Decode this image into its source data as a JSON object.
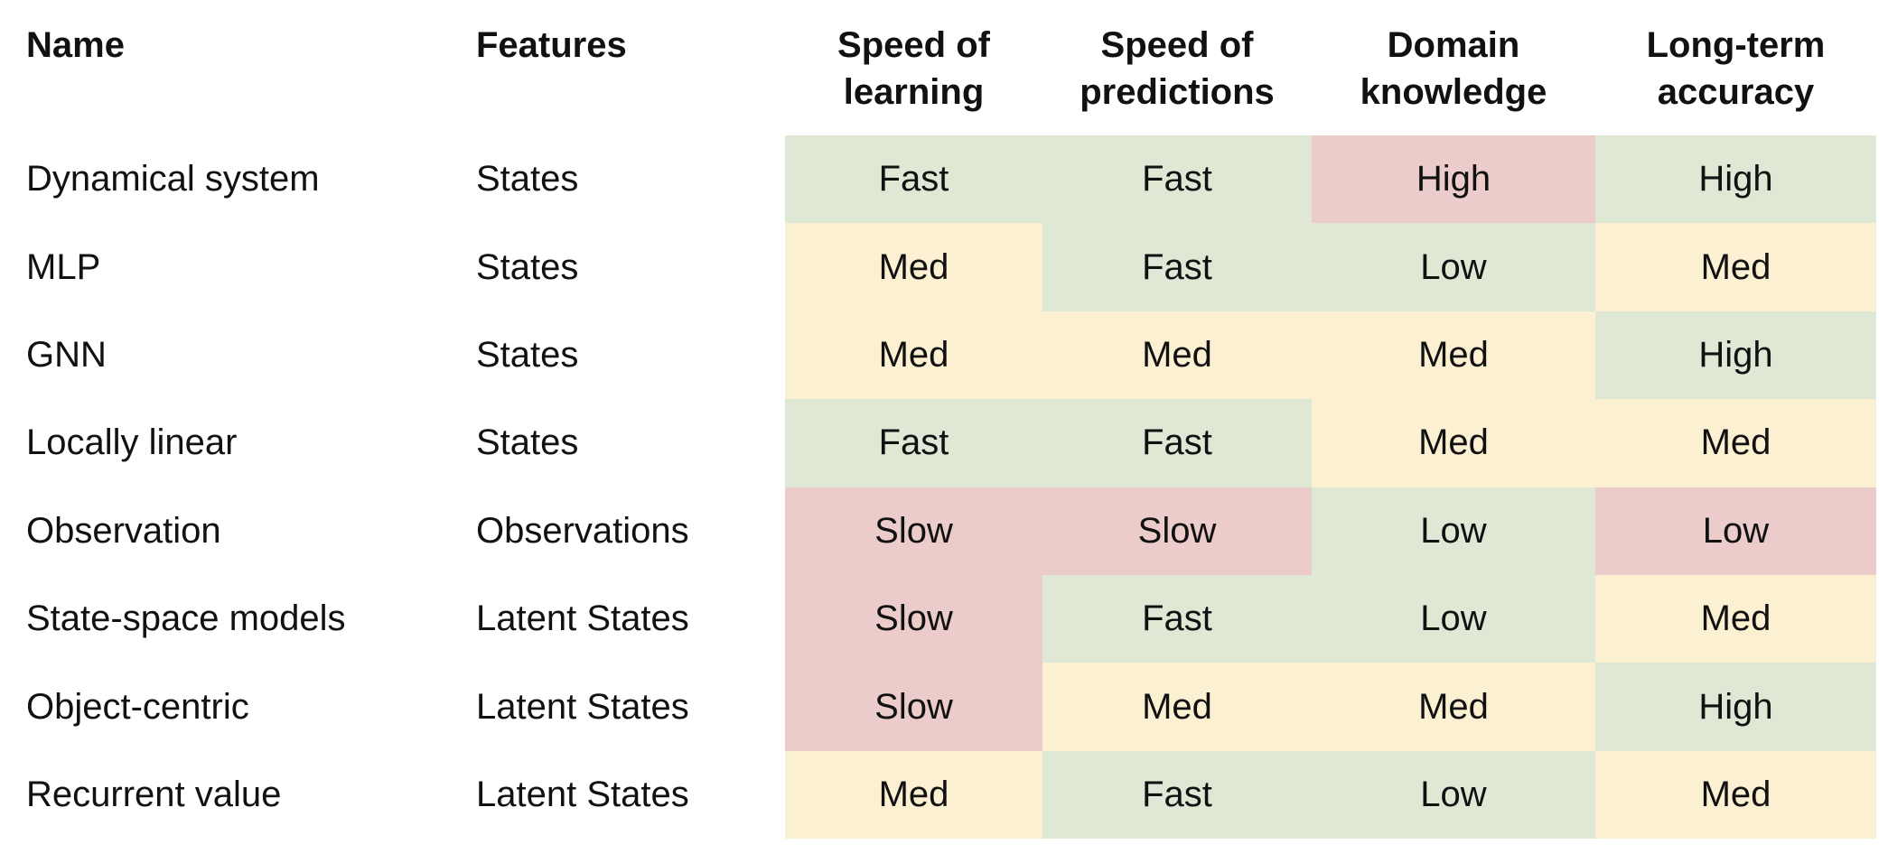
{
  "headers": {
    "name": "Name",
    "features": "Features",
    "speed_learning": "Speed of\nlearning",
    "speed_predictions": "Speed of\npredictions",
    "domain_knowledge": "Domain\nknowledge",
    "long_term_accuracy": "Long-term\naccuracy"
  },
  "colors": {
    "good": "#dfe8d5",
    "mid": "#fcf0d2",
    "bad": "#ecccca"
  },
  "rows": [
    {
      "name": "Dynamical system",
      "features": "States",
      "speed_learning": "Fast",
      "speed_predictions": "Fast",
      "domain_knowledge": "High",
      "long_term_accuracy": "High",
      "tones": [
        "good",
        "good",
        "bad",
        "good"
      ]
    },
    {
      "name": "MLP",
      "features": "States",
      "speed_learning": "Med",
      "speed_predictions": "Fast",
      "domain_knowledge": "Low",
      "long_term_accuracy": "Med",
      "tones": [
        "mid",
        "good",
        "good",
        "mid"
      ]
    },
    {
      "name": "GNN",
      "features": "States",
      "speed_learning": "Med",
      "speed_predictions": "Med",
      "domain_knowledge": "Med",
      "long_term_accuracy": "High",
      "tones": [
        "mid",
        "mid",
        "mid",
        "good"
      ]
    },
    {
      "name": "Locally linear",
      "features": "States",
      "speed_learning": "Fast",
      "speed_predictions": "Fast",
      "domain_knowledge": "Med",
      "long_term_accuracy": "Med",
      "tones": [
        "good",
        "good",
        "mid",
        "mid"
      ]
    },
    {
      "name": "Observation",
      "features": "Observations",
      "speed_learning": "Slow",
      "speed_predictions": "Slow",
      "domain_knowledge": "Low",
      "long_term_accuracy": "Low",
      "tones": [
        "bad",
        "bad",
        "good",
        "bad"
      ]
    },
    {
      "name": "State-space models",
      "features": "Latent States",
      "speed_learning": "Slow",
      "speed_predictions": "Fast",
      "domain_knowledge": "Low",
      "long_term_accuracy": "Med",
      "tones": [
        "bad",
        "good",
        "good",
        "mid"
      ]
    },
    {
      "name": "Object-centric",
      "features": "Latent States",
      "speed_learning": "Slow",
      "speed_predictions": "Med",
      "domain_knowledge": "Med",
      "long_term_accuracy": "High",
      "tones": [
        "bad",
        "mid",
        "mid",
        "good"
      ]
    },
    {
      "name": "Recurrent value",
      "features": "Latent States",
      "speed_learning": "Med",
      "speed_predictions": "Fast",
      "domain_knowledge": "Low",
      "long_term_accuracy": "Med",
      "tones": [
        "mid",
        "good",
        "good",
        "mid"
      ]
    }
  ]
}
